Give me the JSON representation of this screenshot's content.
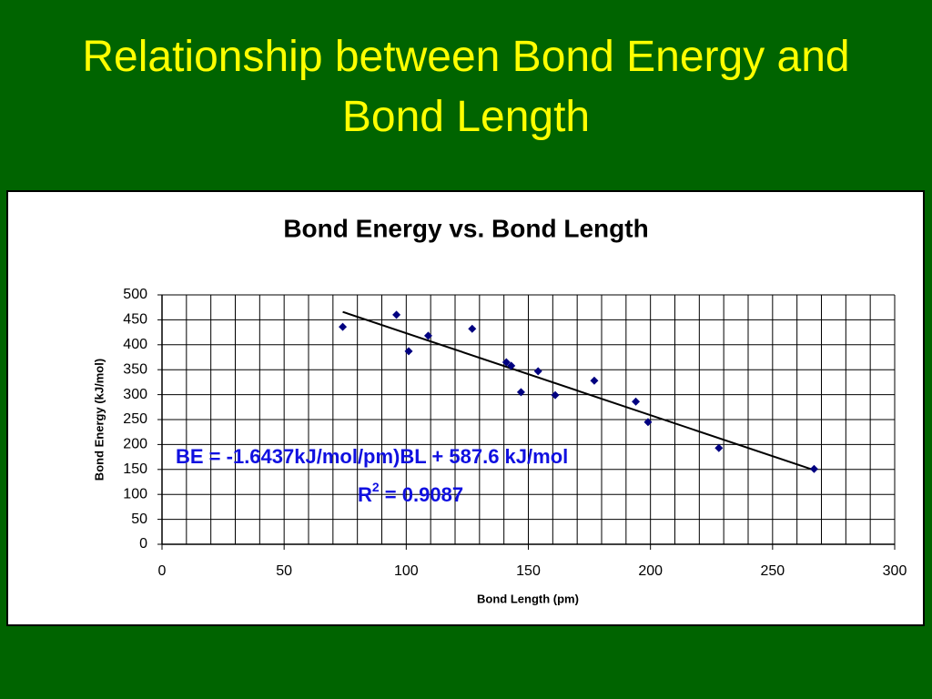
{
  "chart_data": {
    "type": "scatter",
    "slide_title": "Relationship between Bond Energy and Bond Length",
    "title": "Bond Energy vs. Bond Length",
    "x_label": "Bond Length (pm)",
    "y_label": "Bond Energy (kJ/mol)",
    "series": [
      {
        "name": "Bond Energy",
        "color": "#000080",
        "x": [
          74,
          96,
          101,
          109,
          127,
          141,
          143,
          147,
          154,
          161,
          177,
          194,
          199,
          228,
          267
        ],
        "values": [
          436,
          460,
          387,
          418,
          432,
          365,
          358,
          305,
          347,
          299,
          328,
          286,
          245,
          193,
          151
        ]
      }
    ],
    "trendline": {
      "slope": -1.6437,
      "intercept": 587.6,
      "color": "#000000"
    },
    "equation_label": "BE = -1.6437kJ/mol/pm)BL + 587.6 kJ/mol",
    "r_squared_label": {
      "base": "R",
      "superscript": "2",
      "rest": " = 0.9087"
    },
    "annotation_color": "#1010e0",
    "xlim": [
      0,
      300
    ],
    "xticks": [
      0,
      50,
      100,
      150,
      200,
      250,
      300
    ],
    "x_minor_grid": [
      10,
      20,
      30,
      40,
      60,
      70,
      80,
      90,
      110,
      120,
      130,
      140,
      160,
      170,
      180,
      190,
      210,
      220,
      230,
      240,
      260,
      270,
      280,
      290
    ],
    "ylim": [
      0,
      500
    ],
    "yticks": [
      0,
      50,
      100,
      150,
      200,
      250,
      300,
      350,
      400,
      450,
      500
    ],
    "grid": true
  }
}
